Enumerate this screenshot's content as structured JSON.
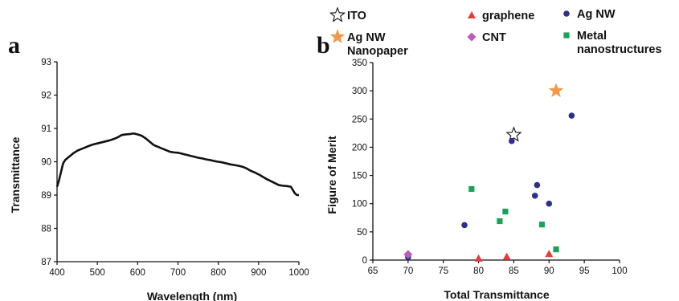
{
  "chart_data": [
    {
      "type": "line",
      "panel_label": "a",
      "xlabel": "Wavelength (nm)",
      "ylabel": "Transmittance",
      "xlim": [
        400,
        1000
      ],
      "ylim": [
        87,
        93
      ],
      "xticks": [
        400,
        500,
        600,
        700,
        800,
        900,
        1000
      ],
      "yticks": [
        87,
        88,
        89,
        90,
        91,
        92,
        93
      ],
      "grid": false,
      "series": [
        {
          "color": "#111111",
          "x": [
            400,
            405,
            410,
            415,
            420,
            430,
            440,
            450,
            460,
            470,
            480,
            490,
            500,
            510,
            520,
            530,
            540,
            550,
            560,
            570,
            580,
            590,
            600,
            610,
            620,
            630,
            640,
            650,
            660,
            670,
            680,
            690,
            700,
            710,
            720,
            730,
            740,
            750,
            760,
            770,
            780,
            790,
            800,
            810,
            820,
            830,
            840,
            850,
            860,
            870,
            880,
            890,
            900,
            910,
            920,
            930,
            940,
            950,
            960,
            970,
            980,
            985,
            990,
            995,
            1000
          ],
          "y": [
            89.25,
            89.45,
            89.7,
            89.95,
            90.05,
            90.15,
            90.25,
            90.33,
            90.38,
            90.43,
            90.48,
            90.52,
            90.55,
            90.58,
            90.61,
            90.64,
            90.68,
            90.73,
            90.8,
            90.82,
            90.83,
            90.85,
            90.82,
            90.78,
            90.7,
            90.6,
            90.5,
            90.45,
            90.4,
            90.35,
            90.3,
            90.28,
            90.27,
            90.24,
            90.21,
            90.18,
            90.15,
            90.12,
            90.1,
            90.07,
            90.05,
            90.02,
            90.0,
            89.98,
            89.95,
            89.92,
            89.9,
            89.88,
            89.85,
            89.8,
            89.73,
            89.68,
            89.62,
            89.55,
            89.48,
            89.42,
            89.36,
            89.3,
            89.28,
            89.27,
            89.25,
            89.15,
            89.05,
            89.0,
            89.0
          ]
        }
      ]
    },
    {
      "type": "scatter",
      "panel_label": "b",
      "xlabel": "Total Transmittance",
      "ylabel": "Figure of Merit",
      "xlim": [
        65,
        100
      ],
      "ylim": [
        0,
        350
      ],
      "xticks": [
        65,
        70,
        75,
        80,
        85,
        90,
        95,
        100
      ],
      "yticks": [
        0,
        50,
        100,
        150,
        200,
        250,
        300,
        350
      ],
      "grid": false,
      "legend_position": "top",
      "series": [
        {
          "name": "ITO",
          "marker": "star-open",
          "color": "#111111",
          "points": [
            [
              85,
              222
            ]
          ]
        },
        {
          "name": "graphene",
          "marker": "triangle",
          "color": "#e83a3a",
          "points": [
            [
              80,
              3
            ],
            [
              84,
              6
            ],
            [
              90,
              11
            ]
          ]
        },
        {
          "name": "Ag NW",
          "marker": "circle",
          "color": "#2c2f8e",
          "points": [
            [
              70,
              5
            ],
            [
              78,
              62
            ],
            [
              84.7,
              211
            ],
            [
              88,
              114
            ],
            [
              88.3,
              133
            ],
            [
              90,
              100
            ],
            [
              93.2,
              256
            ]
          ]
        },
        {
          "name": "Ag NW\nNanopaper",
          "marker": "star-filled",
          "color": "#f39a4a",
          "points": [
            [
              91,
              300
            ]
          ]
        },
        {
          "name": "CNT",
          "marker": "diamond",
          "color": "#c05ab8",
          "points": [
            [
              70,
              10
            ]
          ]
        },
        {
          "name": "Metal\nnanostructures",
          "marker": "square",
          "color": "#1aa25a",
          "points": [
            [
              79,
              126
            ],
            [
              83,
              69
            ],
            [
              83.8,
              86
            ],
            [
              89,
              63
            ],
            [
              91,
              19
            ]
          ]
        }
      ]
    }
  ]
}
